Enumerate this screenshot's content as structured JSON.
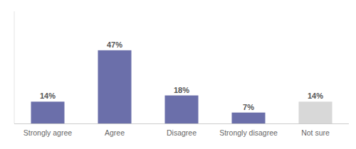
{
  "chart_data": {
    "type": "bar",
    "categories": [
      "Strongly agree",
      "Agree",
      "Disagree",
      "Strongly disagree",
      "Not sure"
    ],
    "values": [
      14,
      47,
      18,
      7,
      14
    ],
    "value_labels": [
      "14%",
      "47%",
      "18%",
      "7%",
      "14%"
    ],
    "colors": [
      "#6b6faa",
      "#6b6faa",
      "#6b6faa",
      "#6b6faa",
      "#d8d8d8"
    ],
    "ylim": [
      0,
      72
    ],
    "grid": false,
    "data_labels": true,
    "tick_labels": "x"
  }
}
